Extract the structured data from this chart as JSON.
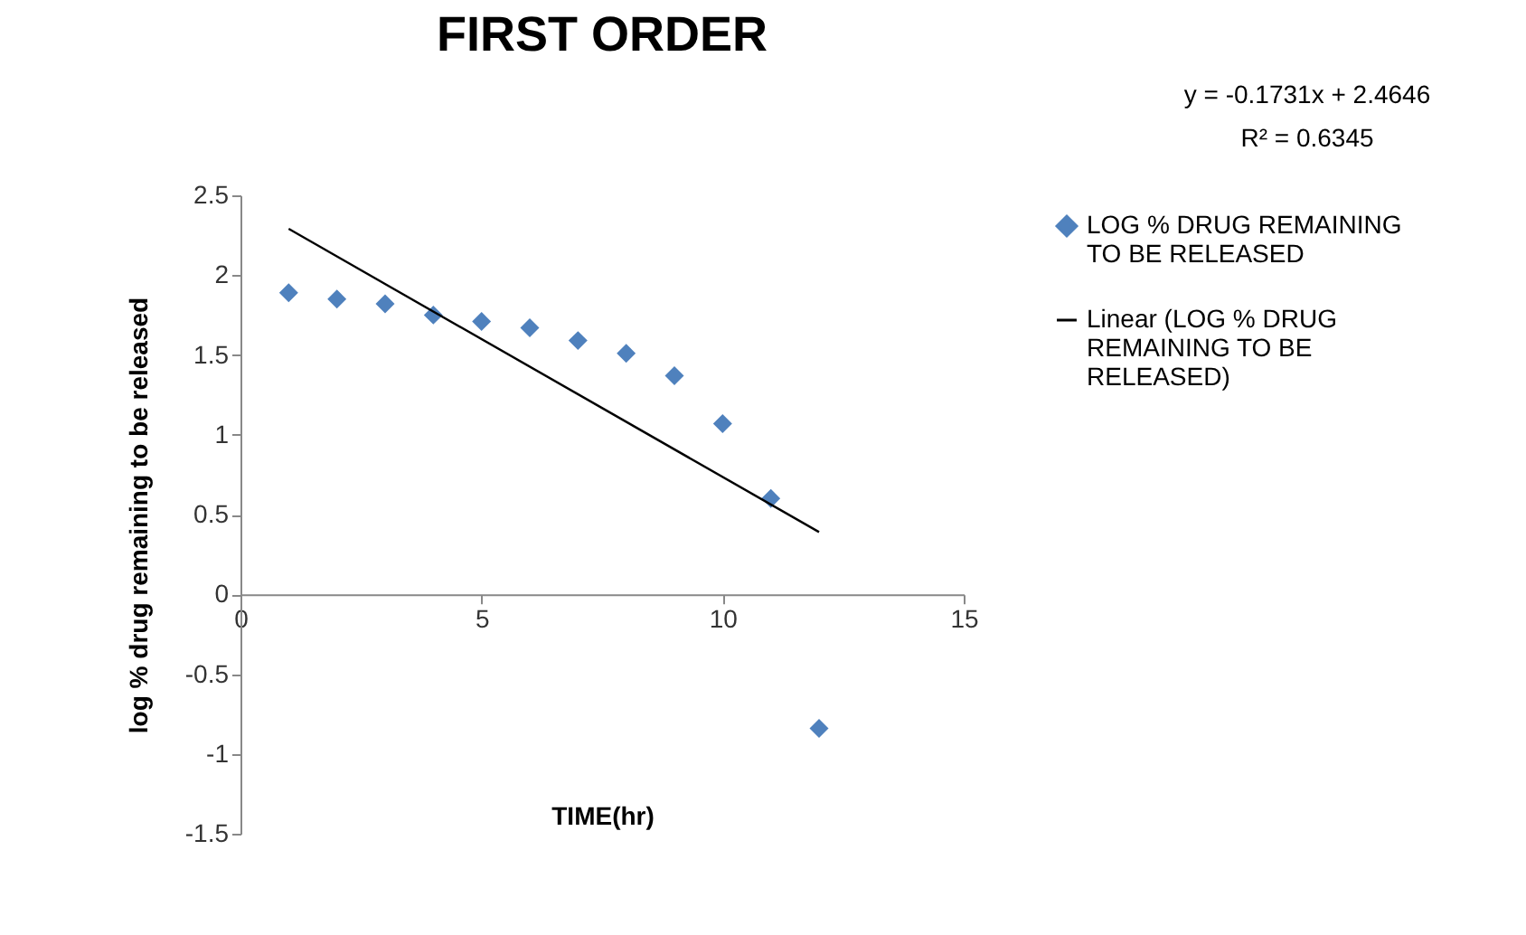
{
  "chart_data": {
    "type": "scatter",
    "title": "FIRST  ORDER",
    "xlabel": "TIME(hr)",
    "ylabel": "log % drug remaining to be released",
    "x": [
      1,
      2,
      3,
      4,
      5,
      6,
      7,
      8,
      9,
      10,
      11,
      12
    ],
    "series": [
      {
        "name": "LOG % DRUG REMAINING TO BE RELEASED",
        "color": "#4f81bd",
        "marker": "diamond",
        "values": [
          1.89,
          1.85,
          1.82,
          1.75,
          1.71,
          1.67,
          1.59,
          1.51,
          1.37,
          1.07,
          0.6,
          -0.84
        ]
      },
      {
        "name": "Linear (LOG % DRUG REMAINING TO BE RELEASED)",
        "type": "line",
        "color": "#000000",
        "x": [
          1,
          12
        ],
        "values": [
          2.29,
          0.39
        ]
      }
    ],
    "xlim": [
      0,
      15
    ],
    "xticks": [
      0,
      5,
      10,
      15
    ],
    "ylim": [
      -1.5,
      2.5
    ],
    "yticks": [
      -1.5,
      -1,
      -0.5,
      0,
      0.5,
      1,
      1.5,
      2,
      2.5
    ],
    "grid": false,
    "legend": "right",
    "annotations": [
      "y = -0.1731x + 2.4646",
      "R² = 0.6345"
    ]
  }
}
